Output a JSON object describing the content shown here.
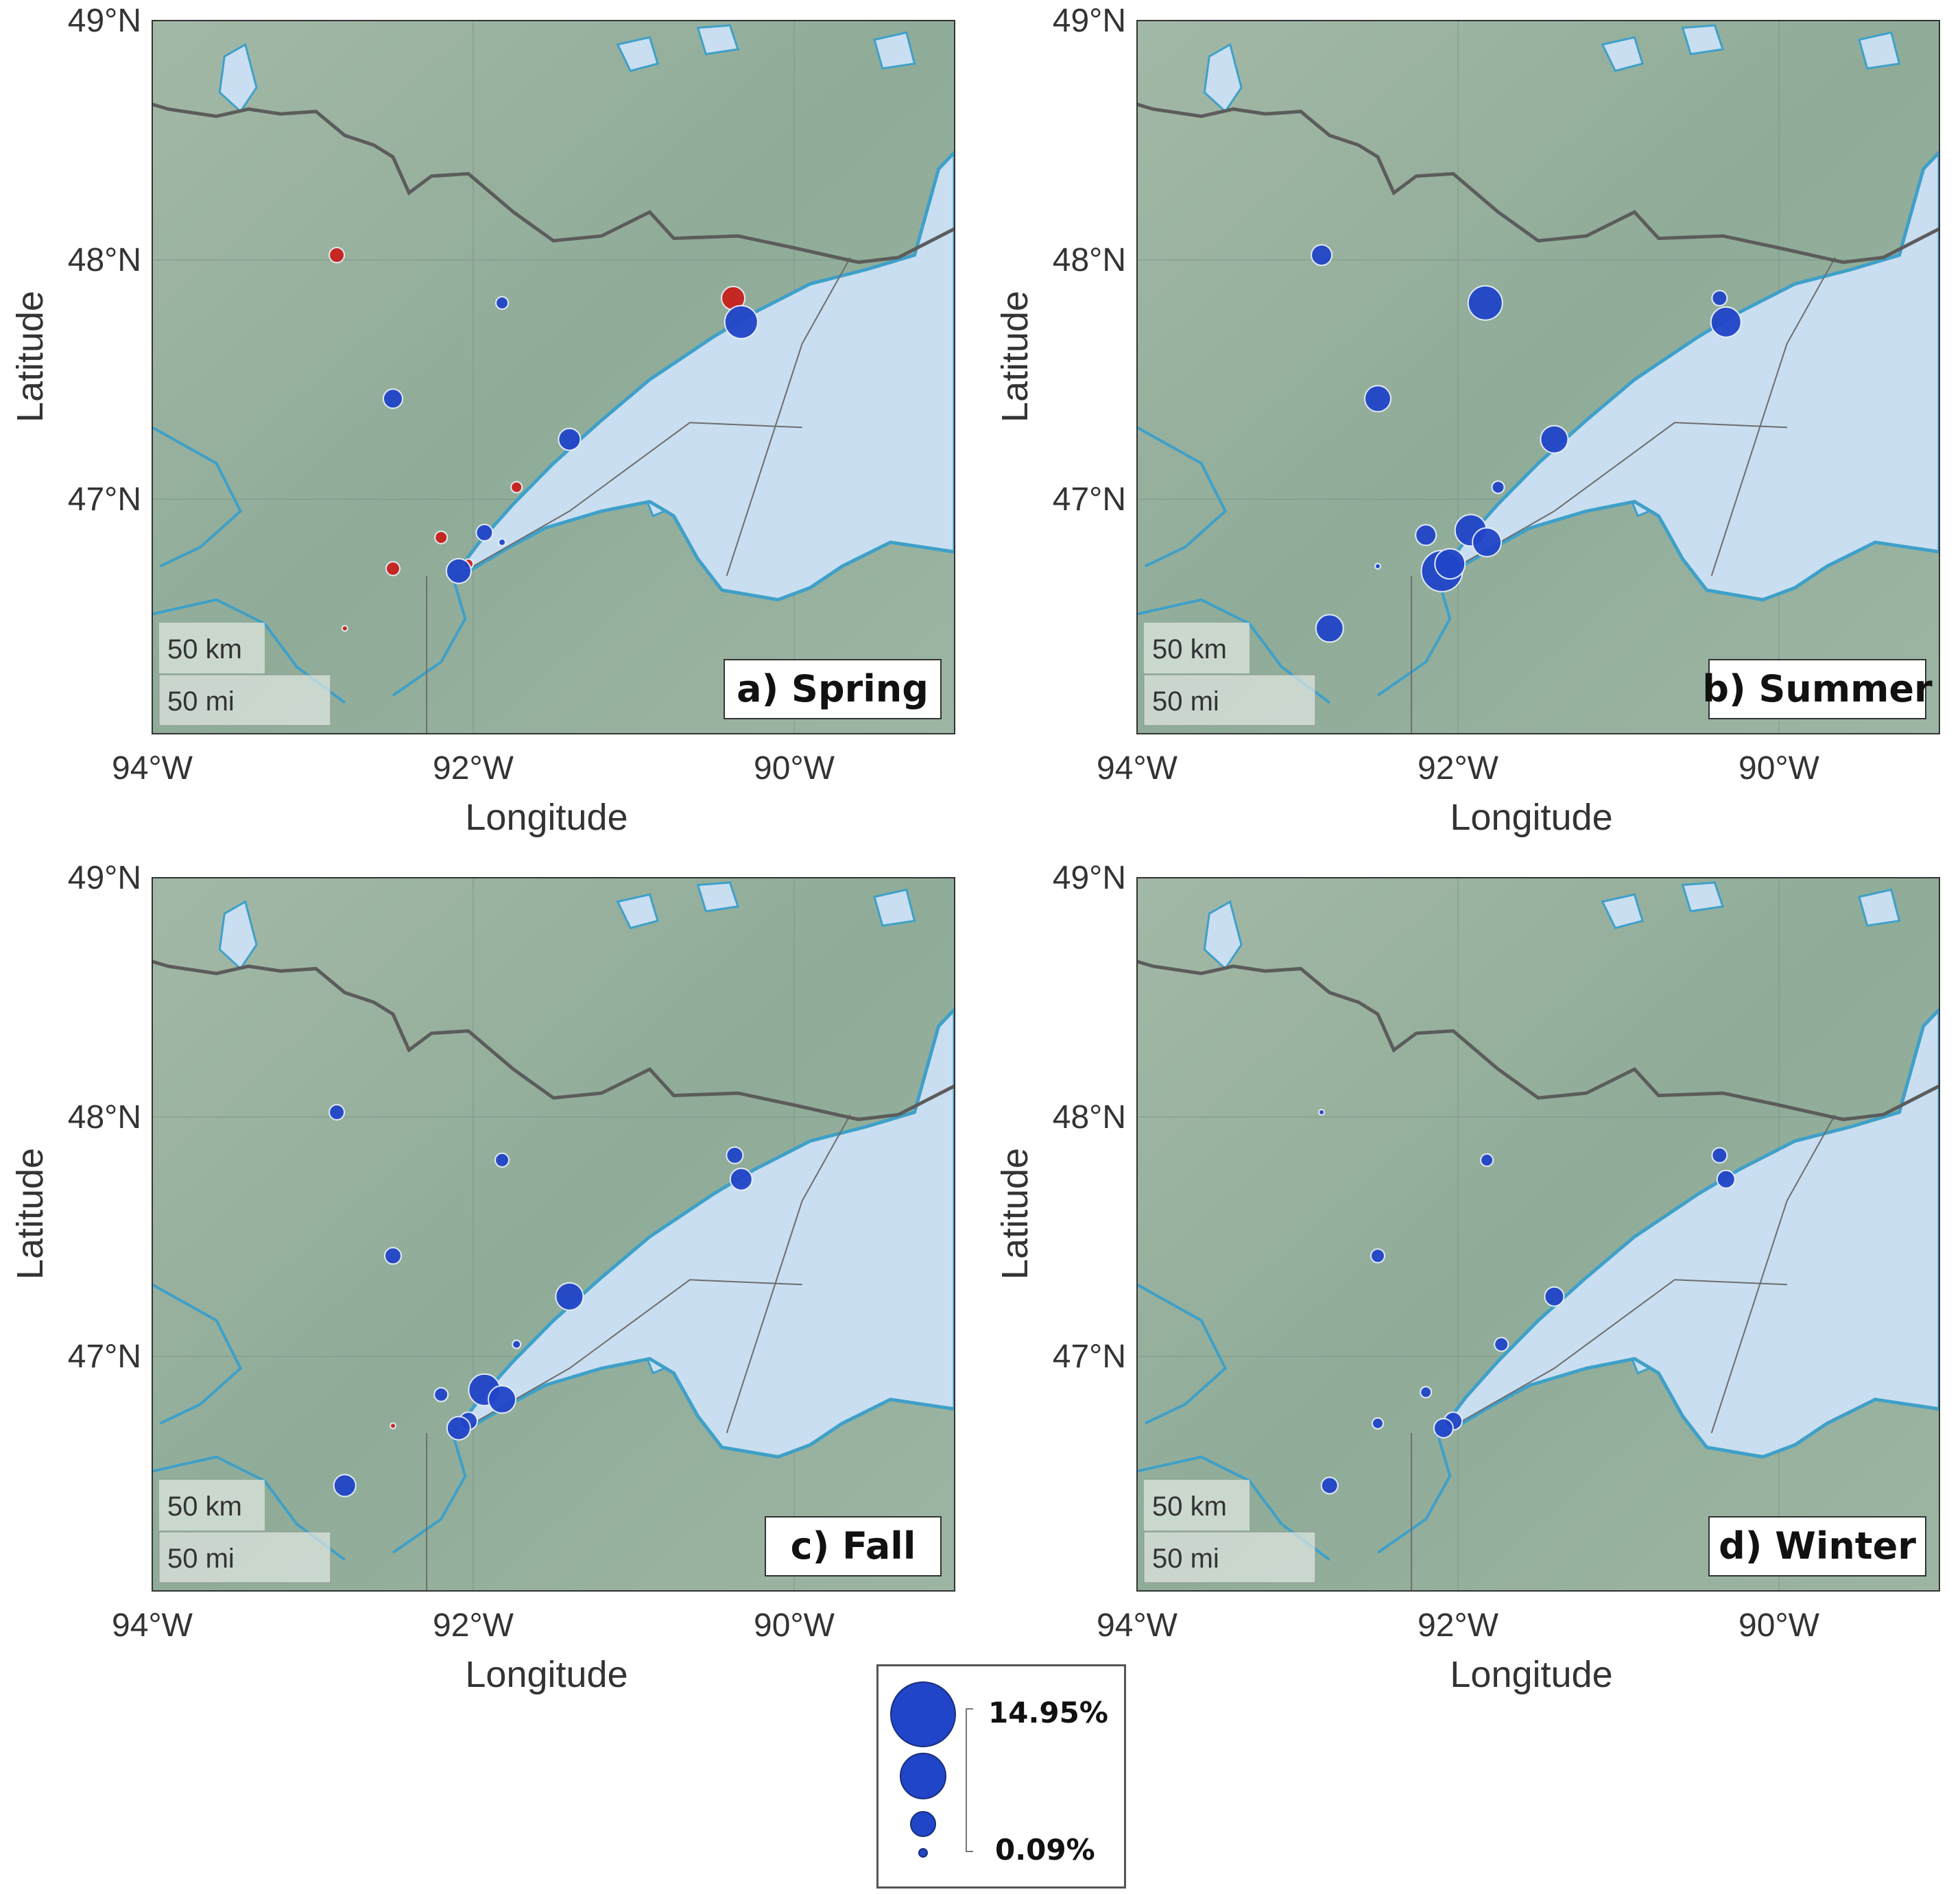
{
  "axes": {
    "xlabel": "Longitude",
    "ylabel": "Latitude",
    "xticks": [
      "94°W",
      "92°W",
      "90°W"
    ],
    "yticks": [
      "49°N",
      "48°N",
      "47°N"
    ]
  },
  "scalebar": {
    "km": "50 km",
    "mi": "50 mi"
  },
  "colors": {
    "positive": "#2145c8",
    "negative": "#c8201c",
    "lake": "#c9def0",
    "land": "#93ad9d",
    "shore": "#3fa0c8",
    "border": "#5c5c5c"
  },
  "panels": [
    {
      "title": "a) Spring",
      "points": [
        {
          "lon": -92.85,
          "lat": 48.02,
          "r": 11,
          "c": "neg"
        },
        {
          "lon": -91.82,
          "lat": 47.82,
          "r": 9,
          "c": "pos"
        },
        {
          "lon": -90.38,
          "lat": 47.84,
          "r": 17,
          "c": "neg"
        },
        {
          "lon": -90.33,
          "lat": 47.74,
          "r": 24,
          "c": "pos"
        },
        {
          "lon": -92.5,
          "lat": 47.42,
          "r": 14,
          "c": "pos"
        },
        {
          "lon": -91.4,
          "lat": 47.25,
          "r": 16,
          "c": "pos"
        },
        {
          "lon": -91.73,
          "lat": 47.05,
          "r": 8,
          "c": "neg"
        },
        {
          "lon": -92.2,
          "lat": 46.84,
          "r": 9,
          "c": "neg"
        },
        {
          "lon": -91.93,
          "lat": 46.86,
          "r": 12,
          "c": "pos"
        },
        {
          "lon": -91.82,
          "lat": 46.82,
          "r": 5,
          "c": "pos"
        },
        {
          "lon": -92.5,
          "lat": 46.71,
          "r": 10,
          "c": "neg"
        },
        {
          "lon": -92.03,
          "lat": 46.73,
          "r": 7,
          "c": "neg"
        },
        {
          "lon": -92.09,
          "lat": 46.7,
          "r": 18,
          "c": "pos"
        },
        {
          "lon": -92.8,
          "lat": 46.46,
          "r": 4,
          "c": "neg"
        }
      ]
    },
    {
      "title": "b) Summer",
      "points": [
        {
          "lon": -92.85,
          "lat": 48.02,
          "r": 15,
          "c": "pos"
        },
        {
          "lon": -91.83,
          "lat": 47.82,
          "r": 25,
          "c": "pos"
        },
        {
          "lon": -90.37,
          "lat": 47.84,
          "r": 11,
          "c": "pos"
        },
        {
          "lon": -90.33,
          "lat": 47.74,
          "r": 22,
          "c": "pos"
        },
        {
          "lon": -92.5,
          "lat": 47.42,
          "r": 19,
          "c": "pos"
        },
        {
          "lon": -91.4,
          "lat": 47.25,
          "r": 20,
          "c": "pos"
        },
        {
          "lon": -91.75,
          "lat": 47.05,
          "r": 9,
          "c": "pos"
        },
        {
          "lon": -92.2,
          "lat": 46.85,
          "r": 15,
          "c": "pos"
        },
        {
          "lon": -91.92,
          "lat": 46.87,
          "r": 23,
          "c": "pos"
        },
        {
          "lon": -91.82,
          "lat": 46.82,
          "r": 21,
          "c": "pos"
        },
        {
          "lon": -92.5,
          "lat": 46.72,
          "r": 4,
          "c": "pos"
        },
        {
          "lon": -92.1,
          "lat": 46.7,
          "r": 30,
          "c": "pos"
        },
        {
          "lon": -92.05,
          "lat": 46.73,
          "r": 22,
          "c": "pos"
        },
        {
          "lon": -92.8,
          "lat": 46.46,
          "r": 20,
          "c": "pos"
        }
      ]
    },
    {
      "title": "c) Fall",
      "points": [
        {
          "lon": -92.85,
          "lat": 48.02,
          "r": 11,
          "c": "pos"
        },
        {
          "lon": -91.82,
          "lat": 47.82,
          "r": 10,
          "c": "pos"
        },
        {
          "lon": -90.37,
          "lat": 47.84,
          "r": 12,
          "c": "pos"
        },
        {
          "lon": -90.33,
          "lat": 47.74,
          "r": 16,
          "c": "pos"
        },
        {
          "lon": -92.5,
          "lat": 47.42,
          "r": 12,
          "c": "pos"
        },
        {
          "lon": -91.4,
          "lat": 47.25,
          "r": 20,
          "c": "pos"
        },
        {
          "lon": -91.73,
          "lat": 47.05,
          "r": 6,
          "c": "pos"
        },
        {
          "lon": -92.2,
          "lat": 46.84,
          "r": 10,
          "c": "pos"
        },
        {
          "lon": -91.93,
          "lat": 46.86,
          "r": 23,
          "c": "pos"
        },
        {
          "lon": -91.82,
          "lat": 46.82,
          "r": 20,
          "c": "pos"
        },
        {
          "lon": -92.5,
          "lat": 46.71,
          "r": 4,
          "c": "neg"
        },
        {
          "lon": -92.03,
          "lat": 46.73,
          "r": 13,
          "c": "pos"
        },
        {
          "lon": -92.09,
          "lat": 46.7,
          "r": 17,
          "c": "pos"
        },
        {
          "lon": -92.8,
          "lat": 46.46,
          "r": 16,
          "c": "pos"
        }
      ]
    },
    {
      "title": "d) Winter",
      "points": [
        {
          "lon": -92.85,
          "lat": 48.02,
          "r": 4,
          "c": "pos"
        },
        {
          "lon": -91.82,
          "lat": 47.82,
          "r": 9,
          "c": "pos"
        },
        {
          "lon": -90.37,
          "lat": 47.84,
          "r": 11,
          "c": "pos"
        },
        {
          "lon": -90.33,
          "lat": 47.74,
          "r": 13,
          "c": "pos"
        },
        {
          "lon": -92.5,
          "lat": 47.42,
          "r": 10,
          "c": "pos"
        },
        {
          "lon": -91.4,
          "lat": 47.25,
          "r": 14,
          "c": "pos"
        },
        {
          "lon": -91.73,
          "lat": 47.05,
          "r": 10,
          "c": "pos"
        },
        {
          "lon": -92.2,
          "lat": 46.85,
          "r": 8,
          "c": "pos"
        },
        {
          "lon": -92.5,
          "lat": 46.72,
          "r": 8,
          "c": "pos"
        },
        {
          "lon": -92.03,
          "lat": 46.73,
          "r": 13,
          "c": "pos"
        },
        {
          "lon": -92.09,
          "lat": 46.7,
          "r": 14,
          "c": "pos"
        },
        {
          "lon": -92.8,
          "lat": 46.46,
          "r": 12,
          "c": "pos"
        }
      ]
    }
  ],
  "legend": {
    "max_label": "14.95%",
    "min_label": "0.09%"
  }
}
